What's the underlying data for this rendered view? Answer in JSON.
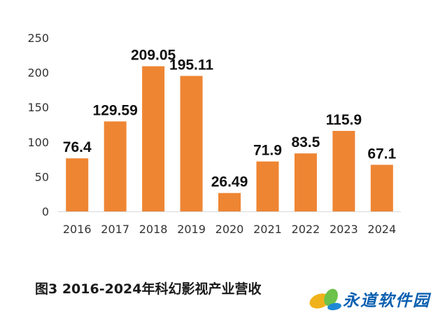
{
  "chart_data": {
    "type": "bar",
    "categories": [
      "2016",
      "2017",
      "2018",
      "2019",
      "2020",
      "2021",
      "2022",
      "2023",
      "2024"
    ],
    "values": [
      76.4,
      129.59,
      209.05,
      195.11,
      26.49,
      71.9,
      83.5,
      115.9,
      67.1
    ],
    "value_labels": [
      "76.4",
      "129.59",
      "209.05",
      "195.11",
      "26.49",
      "71.9",
      "83.5",
      "115.9",
      "67.1"
    ],
    "y_ticks": [
      0,
      50,
      100,
      150,
      200,
      250
    ],
    "ylim": [
      0,
      250
    ],
    "grid": false,
    "legend": "none",
    "bar_color": "#ee8533",
    "axis_color": "#d9d9d9",
    "tick_label_color": "#333333",
    "value_label_color": "#111111"
  },
  "caption": "图3  2016-2024年科幻影视产业营收",
  "logo": {
    "text": "永道软件园",
    "text_color": "#0a5fb0",
    "leaf_colors": [
      "#f0b21a",
      "#6cc24a",
      "#1e88d6"
    ]
  }
}
